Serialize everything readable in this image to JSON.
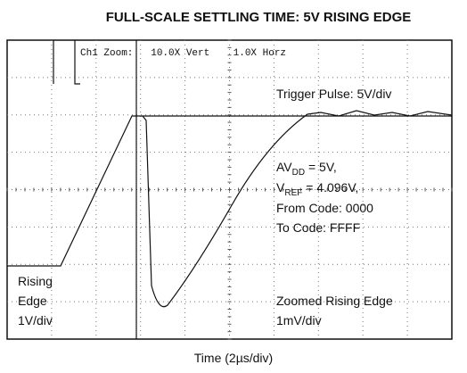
{
  "title": "FULL-SCALE SETTLING TIME: 5V RISING EDGE",
  "scope_header": "Ch1 Zoom:   10.0X Vert    1.0X Horz",
  "trigger_label": "Trigger Pulse: 5V/div",
  "conditions": [
    {
      "main": "AV",
      "sub": "DD",
      "rest": " = 5V,"
    },
    {
      "main": "V",
      "sub": "REF",
      "rest": " = 4.096V,"
    },
    {
      "main": "From Code: 0000"
    },
    {
      "main": "To Code: FFFF"
    }
  ],
  "rising_edge_label": [
    "Rising",
    "Edge",
    "1V/div"
  ],
  "zoomed_label": [
    "Zoomed Rising Edge",
    "1mV/div"
  ],
  "x_axis_label": "Time (2µs/div)"
}
